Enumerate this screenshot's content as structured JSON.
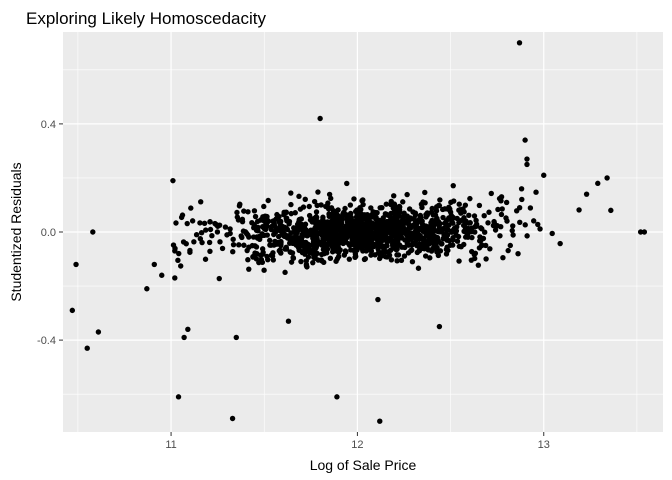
{
  "chart_data": {
    "type": "scatter",
    "title": "Exploring Likely Homoscedacity",
    "xlabel": "Log of Sale Price",
    "ylabel": "Studentized Residuals",
    "xlim": [
      10.42,
      13.64
    ],
    "ylim": [
      -0.74,
      0.74
    ],
    "x_ticks": [
      11,
      12,
      13
    ],
    "x_tick_labels": [
      "11",
      "12",
      "13"
    ],
    "y_ticks": [
      -0.4,
      0.0,
      0.4
    ],
    "y_tick_labels": [
      "-0.4",
      "0.0",
      "0.4"
    ],
    "grid": true,
    "legend": "none",
    "colors": {
      "panel": "#EBEBEB",
      "grid": "#FFFFFF",
      "point": "#000000",
      "tick": "#333333"
    },
    "n_points_cluster_estimate": 1400,
    "outliers": [
      {
        "x": 12.87,
        "y": 0.7
      },
      {
        "x": 11.8,
        "y": 0.42
      },
      {
        "x": 12.9,
        "y": 0.34
      },
      {
        "x": 12.91,
        "y": 0.27
      },
      {
        "x": 12.91,
        "y": 0.25
      },
      {
        "x": 13.0,
        "y": 0.21
      },
      {
        "x": 13.34,
        "y": 0.2
      },
      {
        "x": 13.29,
        "y": 0.18
      },
      {
        "x": 13.23,
        "y": 0.14
      },
      {
        "x": 11.01,
        "y": 0.19
      },
      {
        "x": 10.47,
        "y": -0.29
      },
      {
        "x": 10.55,
        "y": -0.43
      },
      {
        "x": 10.61,
        "y": -0.37
      },
      {
        "x": 10.49,
        "y": -0.12
      },
      {
        "x": 10.58,
        "y": 0.0
      },
      {
        "x": 10.87,
        "y": -0.21
      },
      {
        "x": 11.04,
        "y": -0.61
      },
      {
        "x": 11.33,
        "y": -0.69
      },
      {
        "x": 11.89,
        "y": -0.61
      },
      {
        "x": 12.12,
        "y": -0.7
      },
      {
        "x": 11.35,
        "y": -0.39
      },
      {
        "x": 12.44,
        "y": -0.35
      },
      {
        "x": 11.63,
        "y": -0.33
      },
      {
        "x": 11.09,
        "y": -0.36
      },
      {
        "x": 11.07,
        "y": -0.39
      },
      {
        "x": 13.52,
        "y": 0.0
      },
      {
        "x": 13.54,
        "y": 0.0
      },
      {
        "x": 13.36,
        "y": 0.08
      },
      {
        "x": 12.11,
        "y": -0.25
      },
      {
        "x": 11.02,
        "y": -0.17
      },
      {
        "x": 11.02,
        "y": -0.07
      },
      {
        "x": 10.91,
        "y": -0.12
      },
      {
        "x": 10.95,
        "y": -0.16
      }
    ]
  }
}
